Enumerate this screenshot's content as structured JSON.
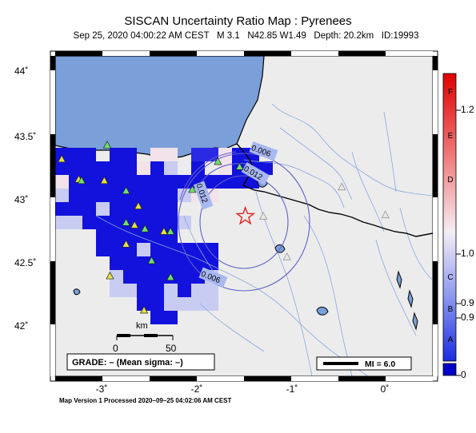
{
  "header": {
    "title": "SISCAN Uncertainty Ratio Map : Pyrenees",
    "subtitle": "Sep 25, 2020 04:00:22 AM CEST   M 3.1   N42.85 W1.49   Depth: 20.2km   ID:19993"
  },
  "axes": {
    "lat_labels": [
      "44˚",
      "43.5˚",
      "43˚",
      "42.5˚",
      "42˚"
    ],
    "lon_labels": [
      "-3˚",
      "-2˚",
      "-1˚",
      "0˚"
    ]
  },
  "contours": [
    "0.006",
    "0.012",
    "0.012",
    "0.006"
  ],
  "scale_bar": {
    "unit": "km",
    "labels": [
      "0",
      "50"
    ]
  },
  "grade_box": "GRADE: – (Mean sigma: –)",
  "mi_box": "MI = 6.0",
  "colorbar": {
    "letters": [
      "F",
      "E",
      "D",
      "C",
      "B",
      "A"
    ],
    "values": [
      "1.2",
      "1.0",
      "0.9",
      "0.9",
      "0"
    ]
  },
  "footer": "Map Version 1 Processed 2020–09–25 04:02:06 AM CEST",
  "colors": {
    "sea": "#7b9fd8",
    "land": "#ececec",
    "cell_blue": "#1010dc",
    "epicenter": "#e02020",
    "station": "#70e070"
  },
  "stations": [
    {
      "lat": 43.3,
      "lon": -3.43
    },
    {
      "lat": 43.41,
      "lon": -2.95
    },
    {
      "lat": 43.14,
      "lon": -3.25
    },
    {
      "lat": 43.13,
      "lon": -3.22
    },
    {
      "lat": 43.13,
      "lon": -2.98
    },
    {
      "lat": 43.05,
      "lon": -2.75
    },
    {
      "lat": 42.93,
      "lon": -2.62
    },
    {
      "lat": 42.8,
      "lon": -2.75
    },
    {
      "lat": 42.78,
      "lon": -2.66
    },
    {
      "lat": 42.75,
      "lon": -2.55
    },
    {
      "lat": 42.73,
      "lon": -2.35
    },
    {
      "lat": 42.73,
      "lon": -2.28
    },
    {
      "lat": 42.63,
      "lon": -2.75
    },
    {
      "lat": 42.5,
      "lon": -2.48
    },
    {
      "lat": 42.38,
      "lon": -2.92
    },
    {
      "lat": 42.37,
      "lon": -2.28
    },
    {
      "lat": 42.11,
      "lon": -2.56
    },
    {
      "lat": 43.06,
      "lon": -2.05
    },
    {
      "lat": 43.28,
      "lon": -1.78
    },
    {
      "lat": 43.24,
      "lon": -1.55
    },
    {
      "lat": 42.85,
      "lon": -1.3
    },
    {
      "lat": 42.53,
      "lon": -1.05
    },
    {
      "lat": 43.08,
      "lon": -0.47
    },
    {
      "lat": 42.86,
      "lon": -0.01
    }
  ],
  "epicenter": {
    "lat": 42.85,
    "lon": -1.49
  }
}
